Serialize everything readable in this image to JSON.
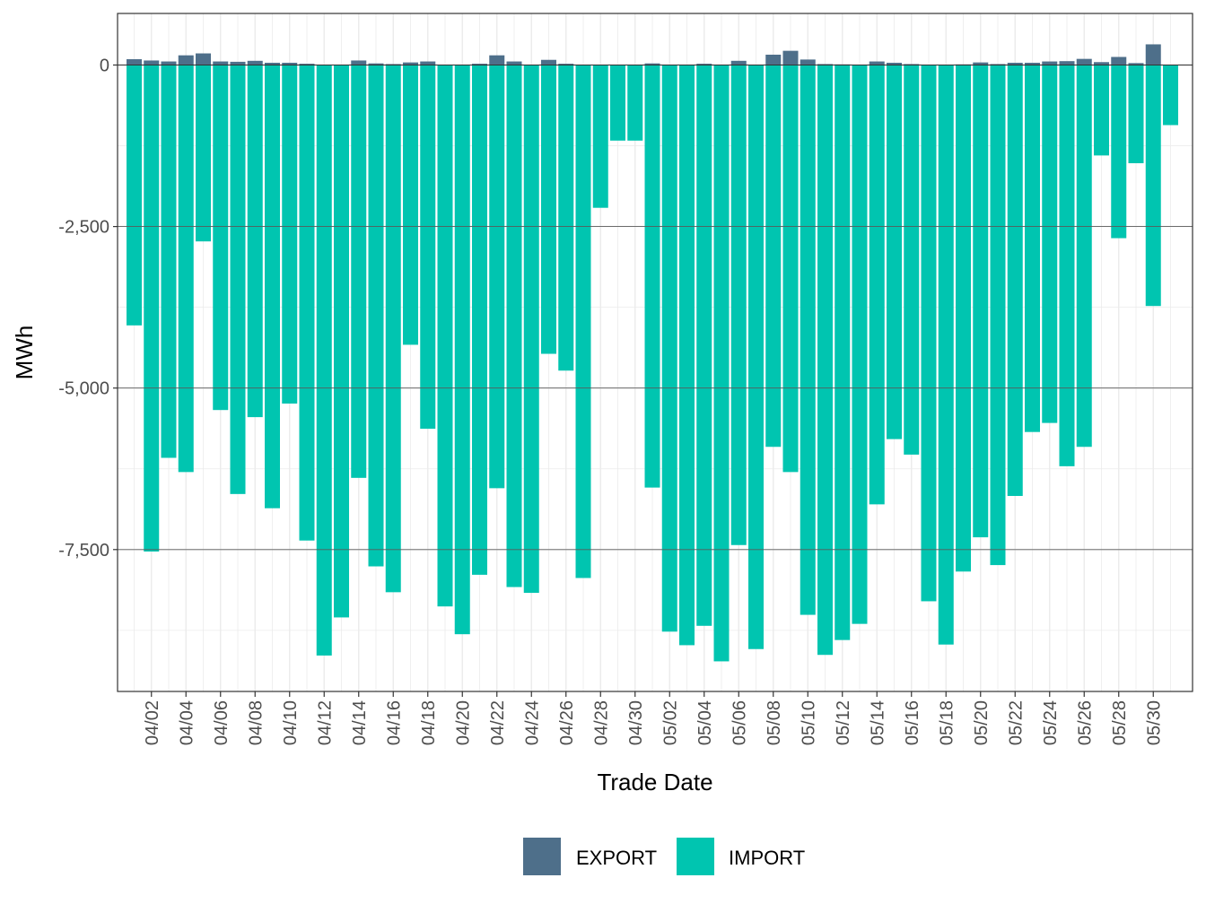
{
  "chart_data": {
    "type": "bar",
    "xlabel": "Trade Date",
    "ylabel": "MWh",
    "ylim": [
      -10000,
      800
    ],
    "y_ticks": [
      0,
      -2500,
      -5000,
      -7500
    ],
    "y_tick_labels": [
      "0",
      "-2,500",
      "-5,000",
      "-7,500"
    ],
    "x_tick_labels": [
      "04/02",
      "04/04",
      "04/06",
      "04/08",
      "04/10",
      "04/12",
      "04/14",
      "04/16",
      "04/18",
      "04/20",
      "04/22",
      "04/24",
      "04/26",
      "04/28",
      "04/30",
      "05/02",
      "05/04",
      "05/06",
      "05/08",
      "05/10",
      "05/12",
      "05/14",
      "05/16",
      "05/18",
      "05/20",
      "05/22",
      "05/24",
      "05/26",
      "05/28",
      "05/30"
    ],
    "categories": [
      "04/01",
      "04/02",
      "04/03",
      "04/04",
      "04/05",
      "04/06",
      "04/07",
      "04/08",
      "04/09",
      "04/10",
      "04/11",
      "04/12",
      "04/13",
      "04/14",
      "04/15",
      "04/16",
      "04/17",
      "04/18",
      "04/19",
      "04/20",
      "04/21",
      "04/22",
      "04/23",
      "04/24",
      "04/25",
      "04/26",
      "04/27",
      "04/28",
      "04/29",
      "04/30",
      "05/01",
      "05/02",
      "05/03",
      "05/04",
      "05/05",
      "05/06",
      "05/07",
      "05/08",
      "05/09",
      "05/10",
      "05/11",
      "05/12",
      "05/13",
      "05/14",
      "05/15",
      "05/16",
      "05/17",
      "05/18",
      "05/19",
      "05/20",
      "05/21",
      "05/22",
      "05/23",
      "05/24",
      "05/25",
      "05/26",
      "05/27",
      "05/28",
      "05/29",
      "05/30",
      "05/31"
    ],
    "series": [
      {
        "name": "EXPORT",
        "color": "#4e6f8a",
        "values": [
          90,
          70,
          55,
          150,
          180,
          55,
          50,
          65,
          35,
          35,
          20,
          0,
          0,
          70,
          25,
          15,
          40,
          55,
          0,
          0,
          20,
          150,
          55,
          0,
          80,
          20,
          0,
          0,
          0,
          0,
          25,
          0,
          0,
          20,
          0,
          65,
          0,
          160,
          220,
          85,
          15,
          10,
          0,
          55,
          35,
          15,
          0,
          0,
          10,
          40,
          15,
          35,
          35,
          55,
          60,
          95,
          45,
          125,
          30,
          320,
          0
        ]
      },
      {
        "name": "IMPORT",
        "color": "#00c5b0",
        "values": [
          -4030,
          -7530,
          -6080,
          -6300,
          -2730,
          -5340,
          -6640,
          -5450,
          -6860,
          -5240,
          -7360,
          -9140,
          -8550,
          -6390,
          -7760,
          -8160,
          -4330,
          -5630,
          -8380,
          -8810,
          -7890,
          -6550,
          -8080,
          -8170,
          -4470,
          -4730,
          -7940,
          -2210,
          -1170,
          -1170,
          -6540,
          -8770,
          -8980,
          -8680,
          -9230,
          -7430,
          -9040,
          -5910,
          -6300,
          -8510,
          -9130,
          -8900,
          -8650,
          -6800,
          -5790,
          -6030,
          -8300,
          -8970,
          -7840,
          -7310,
          -7740,
          -6670,
          -5680,
          -5540,
          -6210,
          -5910,
          -1400,
          -2680,
          -1520,
          -3730,
          -930
        ]
      }
    ],
    "legend": {
      "position": "bottom",
      "entries": [
        "EXPORT",
        "IMPORT"
      ]
    },
    "grid": true
  }
}
